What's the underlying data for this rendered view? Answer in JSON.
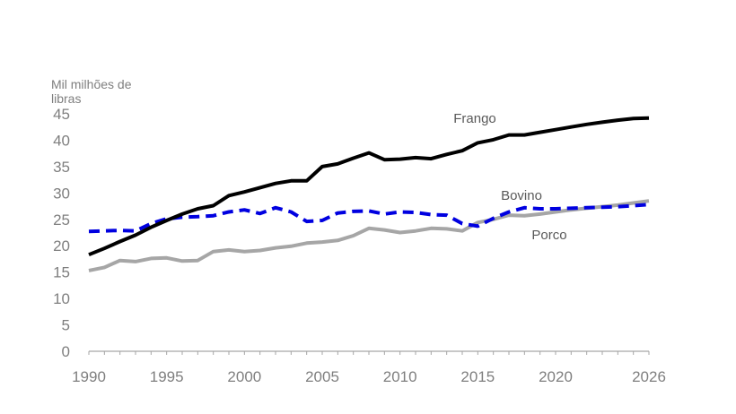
{
  "chart_data": {
    "type": "line",
    "title": "",
    "ylabel_lines": [
      "Mil milhões de",
      "libras"
    ],
    "xlabel": "",
    "xlim": [
      1990,
      2026
    ],
    "ylim": [
      0,
      45
    ],
    "x_ticks": [
      1990,
      1995,
      2000,
      2005,
      2010,
      2015,
      2020,
      2026
    ],
    "y_ticks": [
      0,
      5,
      10,
      15,
      20,
      25,
      30,
      35,
      40,
      45
    ],
    "grid": false,
    "x": [
      1990,
      1991,
      1992,
      1993,
      1994,
      1995,
      1996,
      1997,
      1998,
      1999,
      2000,
      2001,
      2002,
      2003,
      2004,
      2005,
      2006,
      2007,
      2008,
      2009,
      2010,
      2011,
      2012,
      2013,
      2014,
      2015,
      2016,
      2017,
      2018,
      2019,
      2020,
      2021,
      2022,
      2023,
      2024,
      2025,
      2026
    ],
    "series": [
      {
        "name": "Frango",
        "color": "#000000",
        "style": "solid",
        "values": [
          18.3,
          19.5,
          20.8,
          22,
          23.5,
          24.8,
          26,
          27,
          27.6,
          29.5,
          30.2,
          31,
          31.8,
          32.3,
          32.3,
          35,
          35.5,
          36.6,
          37.6,
          36.3,
          36.4,
          36.7,
          36.5,
          37.3,
          38,
          39.5,
          40.1,
          41,
          41,
          41.5,
          42,
          42.5,
          43,
          43.4,
          43.8,
          44.1,
          44.2
        ]
      },
      {
        "name": "Bovino",
        "color": "#0000e0",
        "style": "dashed",
        "values": [
          22.7,
          22.8,
          22.9,
          22.8,
          24.2,
          25.1,
          25.4,
          25.5,
          25.7,
          26.4,
          26.8,
          26.1,
          27.2,
          26.4,
          24.6,
          24.8,
          26.2,
          26.5,
          26.6,
          26,
          26.4,
          26.3,
          25.9,
          25.8,
          24.2,
          23.7,
          25.2,
          26.4,
          27.2,
          27,
          27,
          27.1,
          27.2,
          27.3,
          27.4,
          27.6,
          27.8
        ]
      },
      {
        "name": "Porco",
        "color": "#a6a6a6",
        "style": "solid",
        "values": [
          15.3,
          15.9,
          17.2,
          17,
          17.6,
          17.7,
          17.1,
          17.2,
          18.9,
          19.2,
          18.9,
          19.1,
          19.6,
          19.9,
          20.5,
          20.7,
          21,
          21.9,
          23.3,
          23,
          22.5,
          22.8,
          23.3,
          23.2,
          22.8,
          24.4,
          25,
          25.8,
          25.7,
          26,
          26.4,
          26.8,
          27.1,
          27.4,
          27.7,
          28.1,
          28.5
        ]
      }
    ]
  }
}
